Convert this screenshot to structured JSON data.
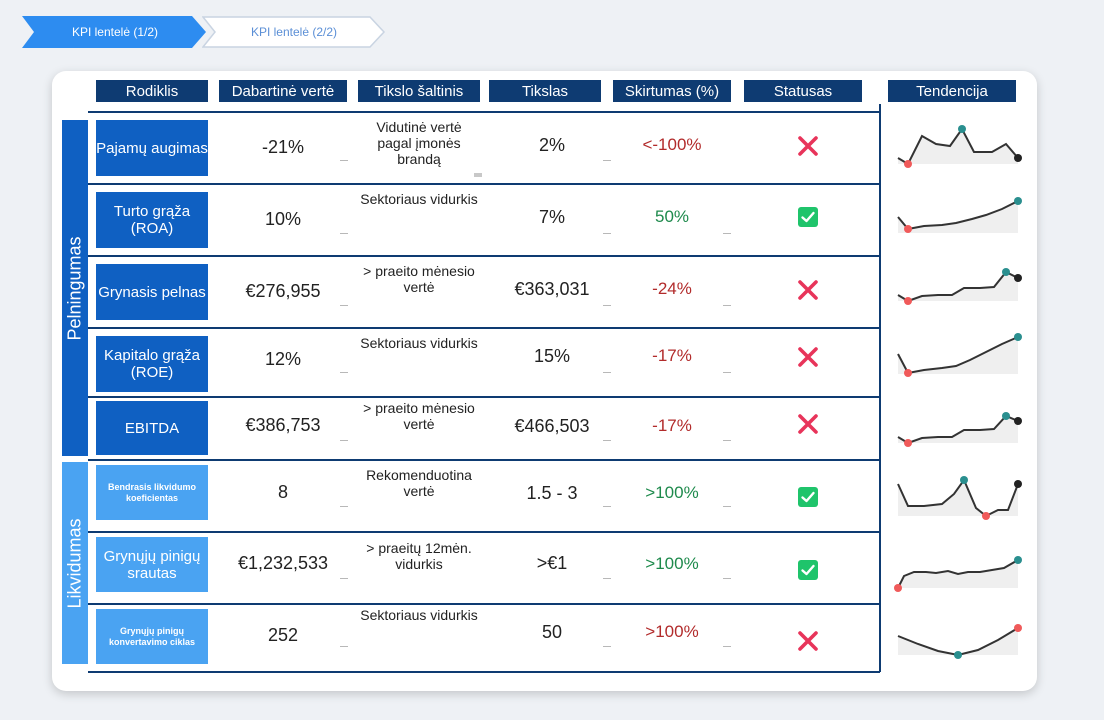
{
  "tabs": [
    {
      "label": "KPI lentelė (1/2)",
      "active": true
    },
    {
      "label": "KPI lentelė (2/2)",
      "active": false
    }
  ],
  "columns": {
    "indicator": "Rodiklis",
    "current": "Dabartinė vertė",
    "source": "Tikslo šaltinis",
    "target": "Tikslas",
    "difference": "Skirtumas (%)",
    "status": "Statusas",
    "trend": "Tendencija"
  },
  "groups": {
    "profitability": "Pelningumas",
    "liquidity": "Likvidumas"
  },
  "colors": {
    "header": "#0e3b72",
    "group_dark": "#0f60c2",
    "group_light": "#4aa3f2",
    "negative": "#b22b2b",
    "positive": "#1e8a4c",
    "fail_icon": "#e8345a",
    "ok_icon": "#1fc46b"
  },
  "rows": [
    {
      "name": "Pajamų augimas",
      "current": "-21%",
      "source": "Vidutinė vertė pagal įmonės brandą",
      "target": "2%",
      "difference": "<-100%",
      "status": "fail",
      "status_icon": "cross-icon"
    },
    {
      "name": "Turto grąža (ROA)",
      "current": "10%",
      "source": "Sektoriaus vidurkis",
      "target": "7%",
      "difference": "50%",
      "status": "ok",
      "status_icon": "check-icon"
    },
    {
      "name": "Grynasis pelnas",
      "current": "€276,955",
      "source": "> praeito mėnesio vertė",
      "target": "€363,031",
      "difference": "-24%",
      "status": "fail",
      "status_icon": "cross-icon"
    },
    {
      "name": "Kapitalo grąža (ROE)",
      "current": "12%",
      "source": "Sektoriaus vidurkis",
      "target": "15%",
      "difference": "-17%",
      "status": "fail",
      "status_icon": "cross-icon"
    },
    {
      "name": "EBITDA",
      "current": "€386,753",
      "source": "> praeito mėnesio vertė",
      "target": "€466,503",
      "difference": "-17%",
      "status": "fail",
      "status_icon": "cross-icon"
    },
    {
      "name": "Bendrasis likvidumo koeficientas",
      "current": "8",
      "source": "Rekomenduotina vertė",
      "target": "1.5 - 3",
      "difference": ">100%",
      "status": "ok",
      "status_icon": "check-icon"
    },
    {
      "name": "Grynųjų pinigų srautas",
      "current": "€1,232,533",
      "source": "> praeitų 12mėn. vidurkis",
      "target": ">€1",
      "difference": ">100%",
      "status": "ok",
      "status_icon": "check-icon"
    },
    {
      "name": "Grynųjų pinigų konvertavimo ciklas",
      "current": "252",
      "source": "Sektoriaus vidurkis",
      "target": "50",
      "difference": ">100%",
      "status": "fail",
      "status_icon": "cross-icon"
    }
  ]
}
